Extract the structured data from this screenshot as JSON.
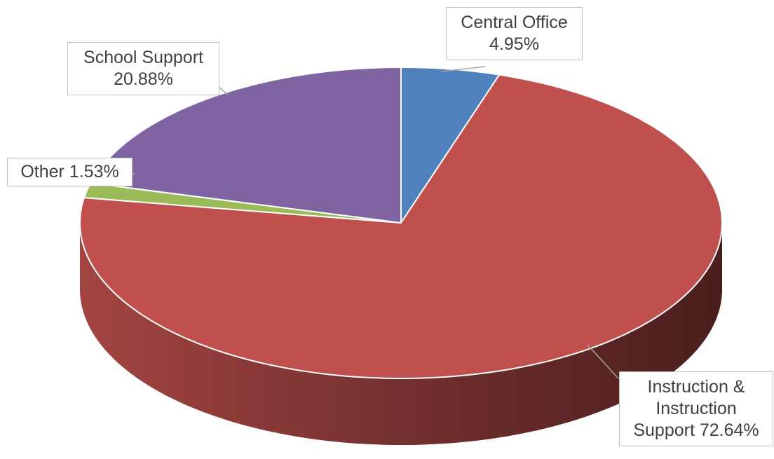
{
  "chart_data": {
    "type": "pie3d",
    "categories": [
      "Central Office",
      "Instruction & Instruction Support",
      "Other",
      "School Support"
    ],
    "values": [
      4.95,
      72.64,
      1.53,
      20.88
    ],
    "value_labels": [
      "4.95%",
      "72.64%",
      "1.53%",
      "20.88%"
    ],
    "colors": [
      "#4f81bd",
      "#c0504d",
      "#9bbb59",
      "#8064a2"
    ]
  }
}
